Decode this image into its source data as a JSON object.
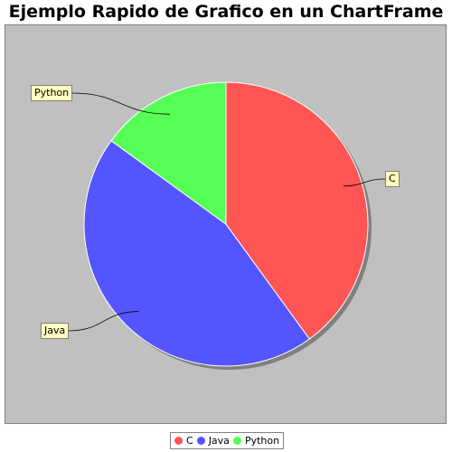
{
  "chart_data": {
    "type": "pie",
    "title": "Ejemplo Rapido de Grafico en un ChartFrame",
    "categories": [
      "C",
      "Java",
      "Python"
    ],
    "values": [
      40,
      45,
      15
    ],
    "colors": [
      "#ff5555",
      "#5555ff",
      "#55ff55"
    ],
    "background": "#c0c0c0",
    "label_background": "#ffffc0",
    "legend": {
      "placement": "bottom",
      "items": [
        "C",
        "Java",
        "Python"
      ]
    }
  }
}
